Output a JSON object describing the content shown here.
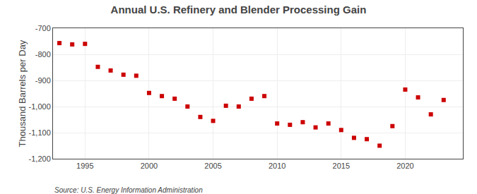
{
  "chart_data": {
    "type": "scatter",
    "title": "Annual U.S. Refinery and Blender Processing Gain",
    "ylabel": "Thousand Barrels per Day",
    "annotations": [
      "Source: U.S. Energy Information Administration"
    ],
    "x": [
      1993,
      1994,
      1995,
      1996,
      1997,
      1998,
      1999,
      2000,
      2001,
      2002,
      2003,
      2004,
      2005,
      2006,
      2007,
      2008,
      2009,
      2010,
      2011,
      2012,
      2013,
      2014,
      2015,
      2016,
      2017,
      2018,
      2019,
      2020,
      2021,
      2022,
      2023
    ],
    "values": [
      -757,
      -762,
      -760,
      -848,
      -862,
      -878,
      -882,
      -948,
      -960,
      -970,
      -1000,
      -1040,
      -1055,
      -997,
      -1000,
      -970,
      -960,
      -1065,
      -1070,
      -1060,
      -1080,
      -1065,
      -1090,
      -1120,
      -1125,
      -1150,
      -1075,
      -935,
      -965,
      -1030,
      -975
    ],
    "color": "#cc0000",
    "marker": "square",
    "xlim": [
      1992.5,
      2024.5
    ],
    "xticks": [
      1995,
      2000,
      2005,
      2010,
      2015,
      2020
    ],
    "ylim": [
      -1200,
      -700
    ],
    "yticks": [
      {
        "value": -1200,
        "label": "-1,200"
      },
      {
        "value": -1100,
        "label": "-1,100"
      },
      {
        "value": -1000,
        "label": "-1,000"
      },
      -900,
      -800,
      -700
    ],
    "grid": true
  }
}
